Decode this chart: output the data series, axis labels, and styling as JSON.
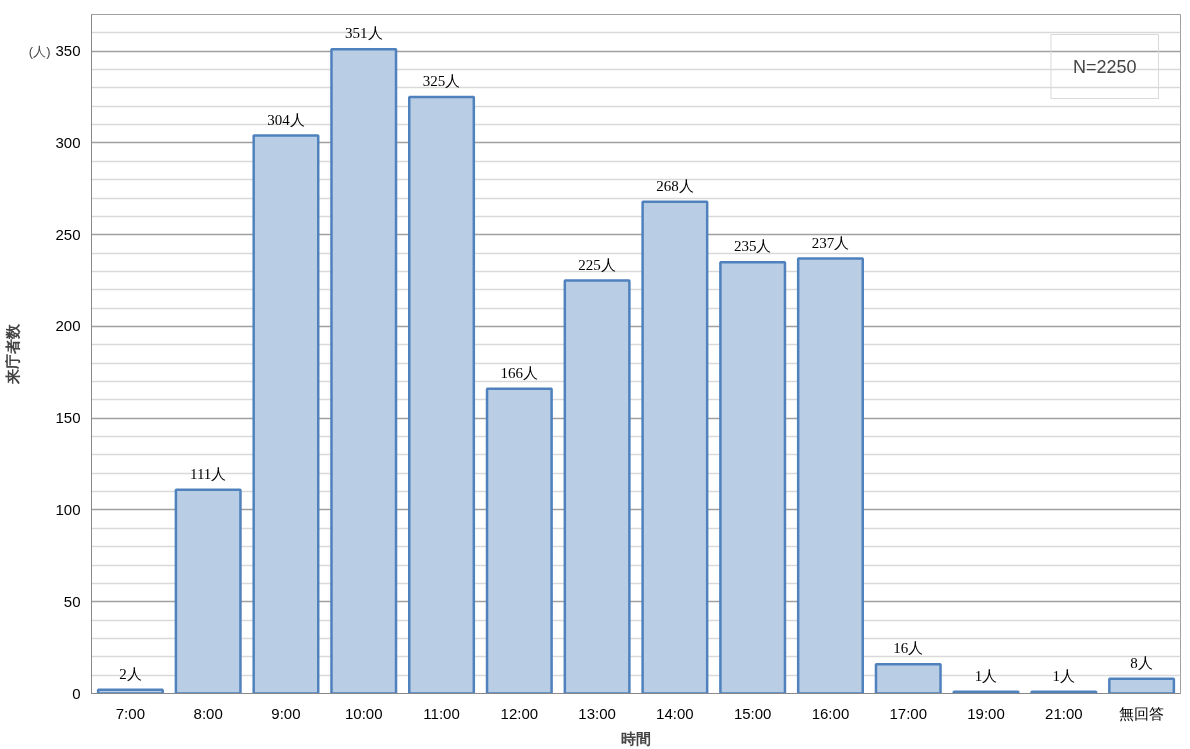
{
  "chart_data": {
    "type": "bar",
    "xlabel": "時間",
    "ylabel": "来庁者数",
    "annotations": [
      "(人)",
      "N=2250"
    ],
    "categories": [
      "7:00",
      "8:00",
      "9:00",
      "10:00",
      "11:00",
      "12:00",
      "13:00",
      "14:00",
      "15:00",
      "16:00",
      "17:00",
      "19:00",
      "21:00",
      "無回答"
    ],
    "series": [
      {
        "color": "#b9cde5",
        "values": [
          2,
          111,
          304,
          351,
          325,
          166,
          225,
          268,
          235,
          237,
          16,
          1,
          1,
          8
        ],
        "value_labels": [
          "2人",
          "111人",
          "304人",
          "351人",
          "325人",
          "166人",
          "225人",
          "268人",
          "235人",
          "237人",
          "16人",
          "1人",
          "1人",
          "8人"
        ]
      }
    ],
    "ylim": [
      0,
      370
    ],
    "yticks": [
      0,
      {
        "value": 10,
        "label": null
      },
      {
        "value": 20,
        "label": null
      },
      {
        "value": 30,
        "label": null
      },
      {
        "value": 40,
        "label": null
      },
      50,
      {
        "value": 60,
        "label": null
      },
      {
        "value": 70,
        "label": null
      },
      {
        "value": 80,
        "label": null
      },
      {
        "value": 90,
        "label": null
      },
      100,
      {
        "value": 110,
        "label": null
      },
      {
        "value": 120,
        "label": null
      },
      {
        "value": 130,
        "label": null
      },
      {
        "value": 140,
        "label": null
      },
      150,
      {
        "value": 160,
        "label": null
      },
      {
        "value": 170,
        "label": null
      },
      {
        "value": 180,
        "label": null
      },
      {
        "value": 190,
        "label": null
      },
      200,
      {
        "value": 210,
        "label": null
      },
      {
        "value": 220,
        "label": null
      },
      {
        "value": 230,
        "label": null
      },
      {
        "value": 240,
        "label": null
      },
      250,
      {
        "value": 260,
        "label": null
      },
      {
        "value": 270,
        "label": null
      },
      {
        "value": 280,
        "label": null
      },
      {
        "value": 290,
        "label": null
      },
      300,
      {
        "value": 310,
        "label": null
      },
      {
        "value": 320,
        "label": null
      },
      {
        "value": 330,
        "label": null
      },
      {
        "value": 340,
        "label": null
      },
      350,
      {
        "value": 360,
        "label": null
      },
      {
        "value": 370,
        "label": null
      }
    ],
    "grid": "y"
  }
}
